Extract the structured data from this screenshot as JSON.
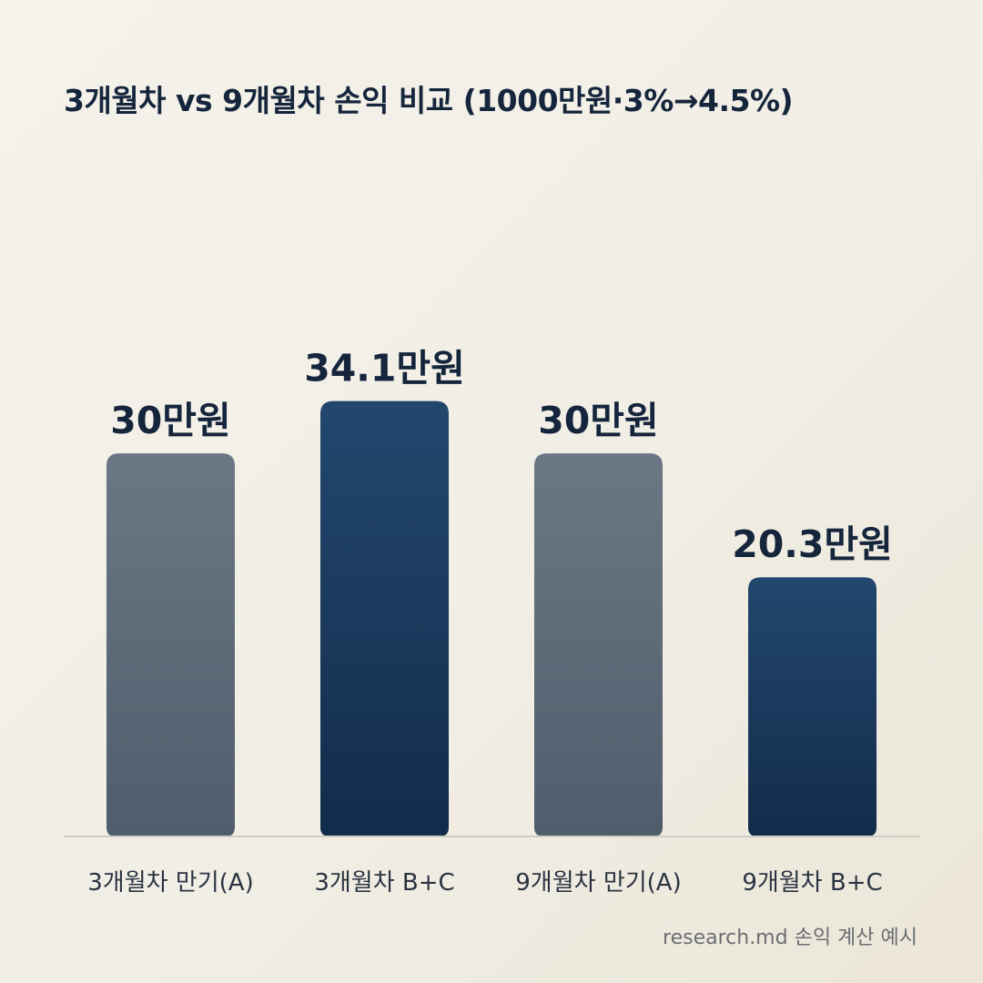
{
  "title": "3개월차 vs 9개월차 손익 비교 (1000만원·3%→4.5%)",
  "footer": "research.md 손익 계산 예시",
  "colors": {
    "background": "#f2efe7",
    "gray_bar_top": "#6b7784",
    "gray_bar_bottom": "#505d6c",
    "navy_bar_top": "#22476d",
    "navy_bar_bottom": "#122c4b",
    "text": "#15253c"
  },
  "chart_data": {
    "type": "bar",
    "title": "3개월차 vs 9개월차 손익 비교 (1000만원·3%→4.5%)",
    "unit": "만원",
    "categories": [
      "3개월차 만기(A)",
      "3개월차 B+C",
      "9개월차 만기(A)",
      "9개월차 B+C"
    ],
    "values": [
      30,
      34.1,
      30,
      20.3
    ],
    "value_labels": [
      "30만원",
      "34.1만원",
      "30만원",
      "20.3만원"
    ],
    "bar_colors": [
      "gray",
      "navy",
      "gray",
      "navy"
    ],
    "ylim": [
      0,
      40
    ],
    "grid": false,
    "legend": "none"
  }
}
